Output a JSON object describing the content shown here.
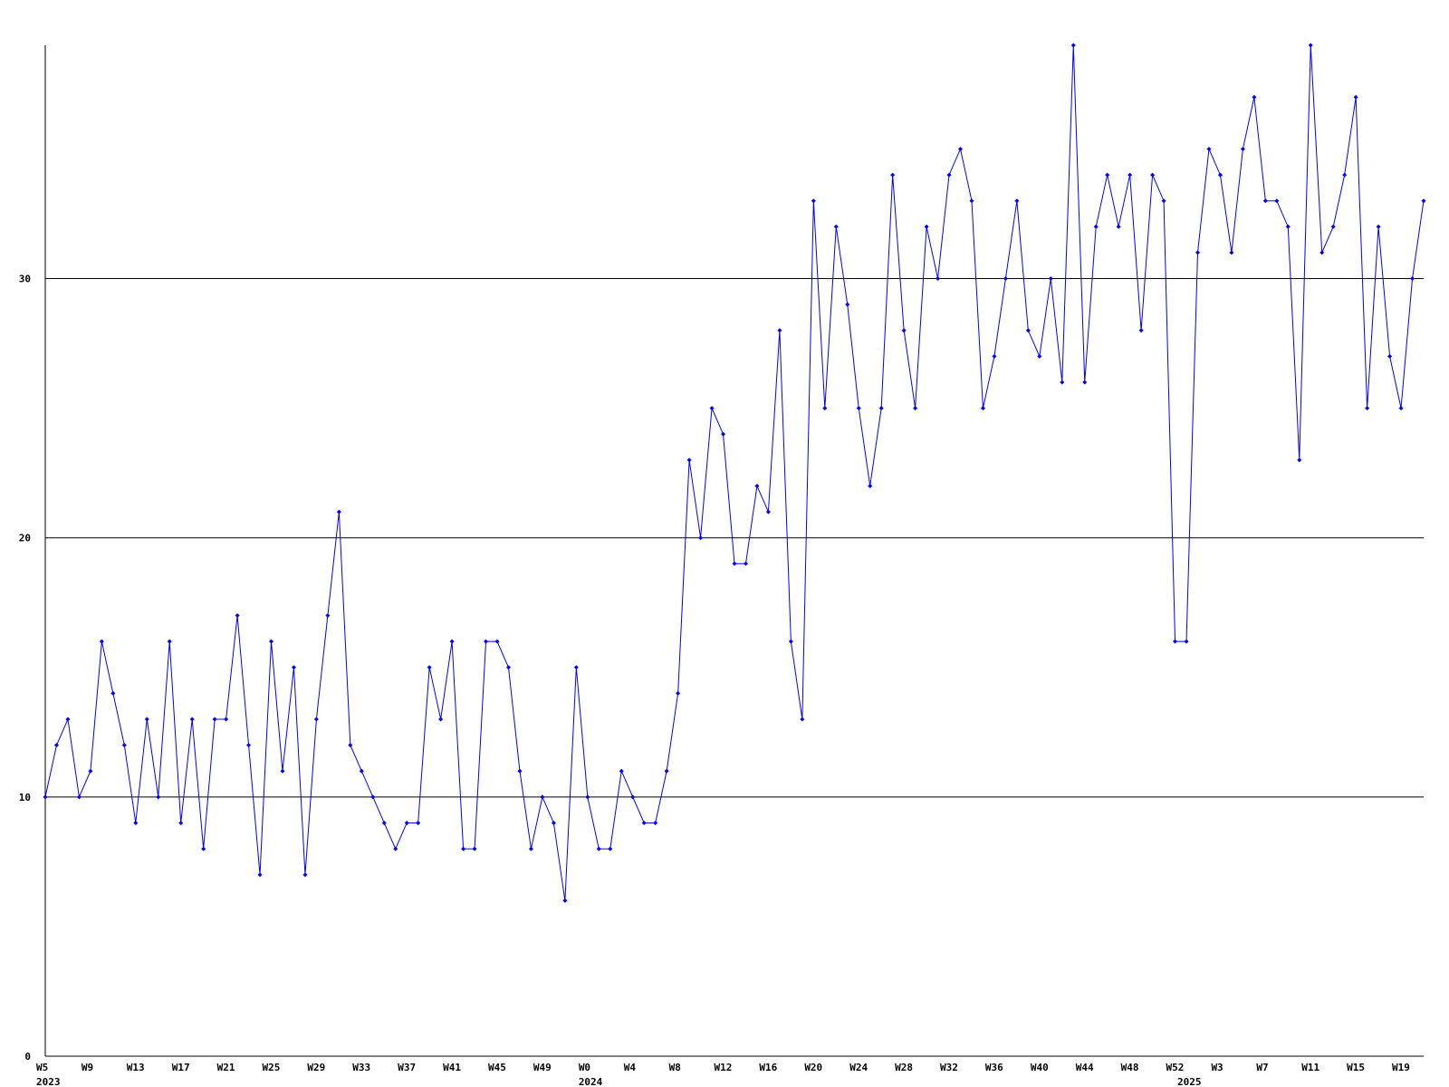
{
  "chart_data": {
    "type": "line",
    "categories": [
      "W5",
      null,
      null,
      null,
      "W9",
      null,
      null,
      null,
      "W13",
      null,
      null,
      null,
      "W17",
      null,
      null,
      null,
      "W21",
      null,
      null,
      null,
      "W25",
      null,
      null,
      null,
      "W29",
      null,
      null,
      null,
      "W33",
      null,
      null,
      null,
      "W37",
      null,
      null,
      null,
      "W41",
      null,
      null,
      null,
      "W45",
      null,
      null,
      null,
      "W49",
      null,
      null,
      null,
      "W0",
      null,
      null,
      null,
      "W4",
      null,
      null,
      null,
      "W8",
      null,
      null,
      null,
      "W12",
      null,
      null,
      null,
      "W16",
      null,
      null,
      null,
      "W20",
      null,
      null,
      null,
      "W24",
      null,
      null,
      null,
      "W28",
      null,
      null,
      null,
      "W32",
      null,
      null,
      null,
      "W36",
      null,
      null,
      null,
      "W40",
      null,
      null,
      null,
      "W44",
      null,
      null,
      null,
      "W48",
      null,
      null,
      null,
      "W52",
      null,
      null,
      null,
      "W3",
      null,
      null,
      null,
      "W7",
      null,
      null,
      null,
      "W11",
      null,
      null,
      null,
      "W15",
      null,
      null,
      null,
      "W19",
      null,
      null
    ],
    "year_labels": [
      "2023",
      null,
      null,
      null,
      null,
      null,
      null,
      null,
      null,
      null,
      null,
      null,
      null,
      null,
      null,
      null,
      null,
      null,
      null,
      null,
      null,
      null,
      null,
      null,
      null,
      null,
      null,
      null,
      null,
      null,
      null,
      null,
      null,
      null,
      null,
      null,
      null,
      null,
      null,
      null,
      null,
      null,
      null,
      null,
      null,
      null,
      null,
      null,
      "2024",
      null,
      null,
      null,
      null,
      null,
      null,
      null,
      null,
      null,
      null,
      null,
      null,
      null,
      null,
      null,
      null,
      null,
      null,
      null,
      null,
      null,
      null,
      null,
      null,
      null,
      null,
      null,
      null,
      null,
      null,
      null,
      null,
      null,
      null,
      null,
      null,
      null,
      null,
      null,
      null,
      null,
      null,
      null,
      null,
      null,
      null,
      null,
      null,
      null,
      null,
      null,
      null,
      "2025",
      null,
      null,
      null,
      null,
      null,
      null,
      null,
      null,
      null,
      null,
      null,
      null,
      null,
      null,
      null,
      null,
      null,
      null,
      null,
      null,
      null
    ],
    "values": [
      10,
      12,
      13,
      10,
      11,
      16,
      14,
      12,
      9,
      13,
      10,
      16,
      9,
      13,
      8,
      13,
      13,
      17,
      12,
      7,
      16,
      11,
      15,
      7,
      13,
      17,
      21,
      12,
      11,
      10,
      9,
      8,
      9,
      9,
      15,
      13,
      16,
      8,
      8,
      16,
      16,
      15,
      11,
      8,
      10,
      9,
      6,
      15,
      10,
      8,
      8,
      11,
      10,
      9,
      9,
      11,
      14,
      23,
      20,
      25,
      24,
      19,
      19,
      22,
      21,
      28,
      16,
      13,
      33,
      25,
      32,
      29,
      25,
      22,
      25,
      34,
      28,
      25,
      32,
      30,
      34,
      35,
      33,
      25,
      27,
      30,
      33,
      28,
      27,
      30,
      26,
      39,
      26,
      32,
      34,
      32,
      34,
      28,
      34,
      33,
      16,
      16,
      31,
      35,
      34,
      31,
      35,
      37,
      33,
      33,
      32,
      23,
      39,
      31,
      32,
      34,
      37,
      25,
      32,
      27,
      25,
      30,
      33
    ],
    "color": "#0000ff",
    "ylim": [
      0,
      39
    ],
    "yticks": [
      0,
      10,
      20,
      30
    ],
    "grid": true
  }
}
